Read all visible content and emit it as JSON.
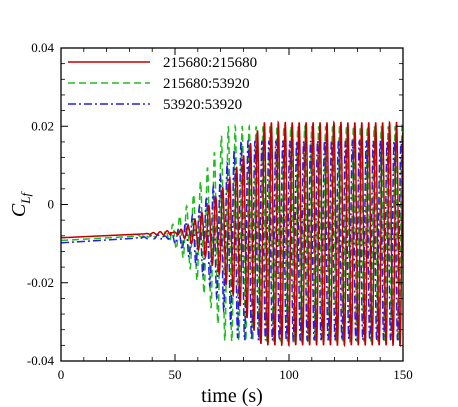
{
  "chart_data": {
    "type": "line",
    "title": "",
    "xlabel": "time (s)",
    "ylabel_main": "C",
    "ylabel_sub": "Lf",
    "xlim": [
      0,
      150
    ],
    "ylim": [
      -0.04,
      0.04
    ],
    "x_ticks": [
      0,
      50,
      100,
      150
    ],
    "x_tick_labels": [
      "0",
      "50",
      "100",
      "150"
    ],
    "y_ticks": [
      -0.04,
      -0.02,
      0,
      0.02,
      0.04
    ],
    "y_tick_labels": [
      "-0.04",
      "-0.02",
      "0",
      "0.02",
      "0.04"
    ],
    "grid": false,
    "legend_position": "top-left",
    "series": [
      {
        "name": "215680:215680",
        "color": "#c00000",
        "dash": "solid",
        "onset": 48,
        "growth_end": 88,
        "period": 3.05,
        "phase": 0.0,
        "baseline_start": -0.0085,
        "baseline_end": -0.0072,
        "final_mean": -0.0075,
        "final_amplitude": 0.0285
      },
      {
        "name": "215680:53920",
        "color": "#22bb22",
        "dash": "dashed",
        "onset": 42,
        "growth_end": 72,
        "period": 3.05,
        "phase": 1.2,
        "baseline_start": -0.0092,
        "baseline_end": -0.0078,
        "final_mean": -0.0075,
        "final_amplitude": 0.0275
      },
      {
        "name": "53920:53920",
        "color": "#2222dd",
        "dash": "dashdot",
        "onset": 44,
        "growth_end": 78,
        "period": 3.05,
        "phase": 2.2,
        "baseline_start": -0.0098,
        "baseline_end": -0.0082,
        "final_mean": -0.0092,
        "final_amplitude": 0.0255
      }
    ]
  }
}
